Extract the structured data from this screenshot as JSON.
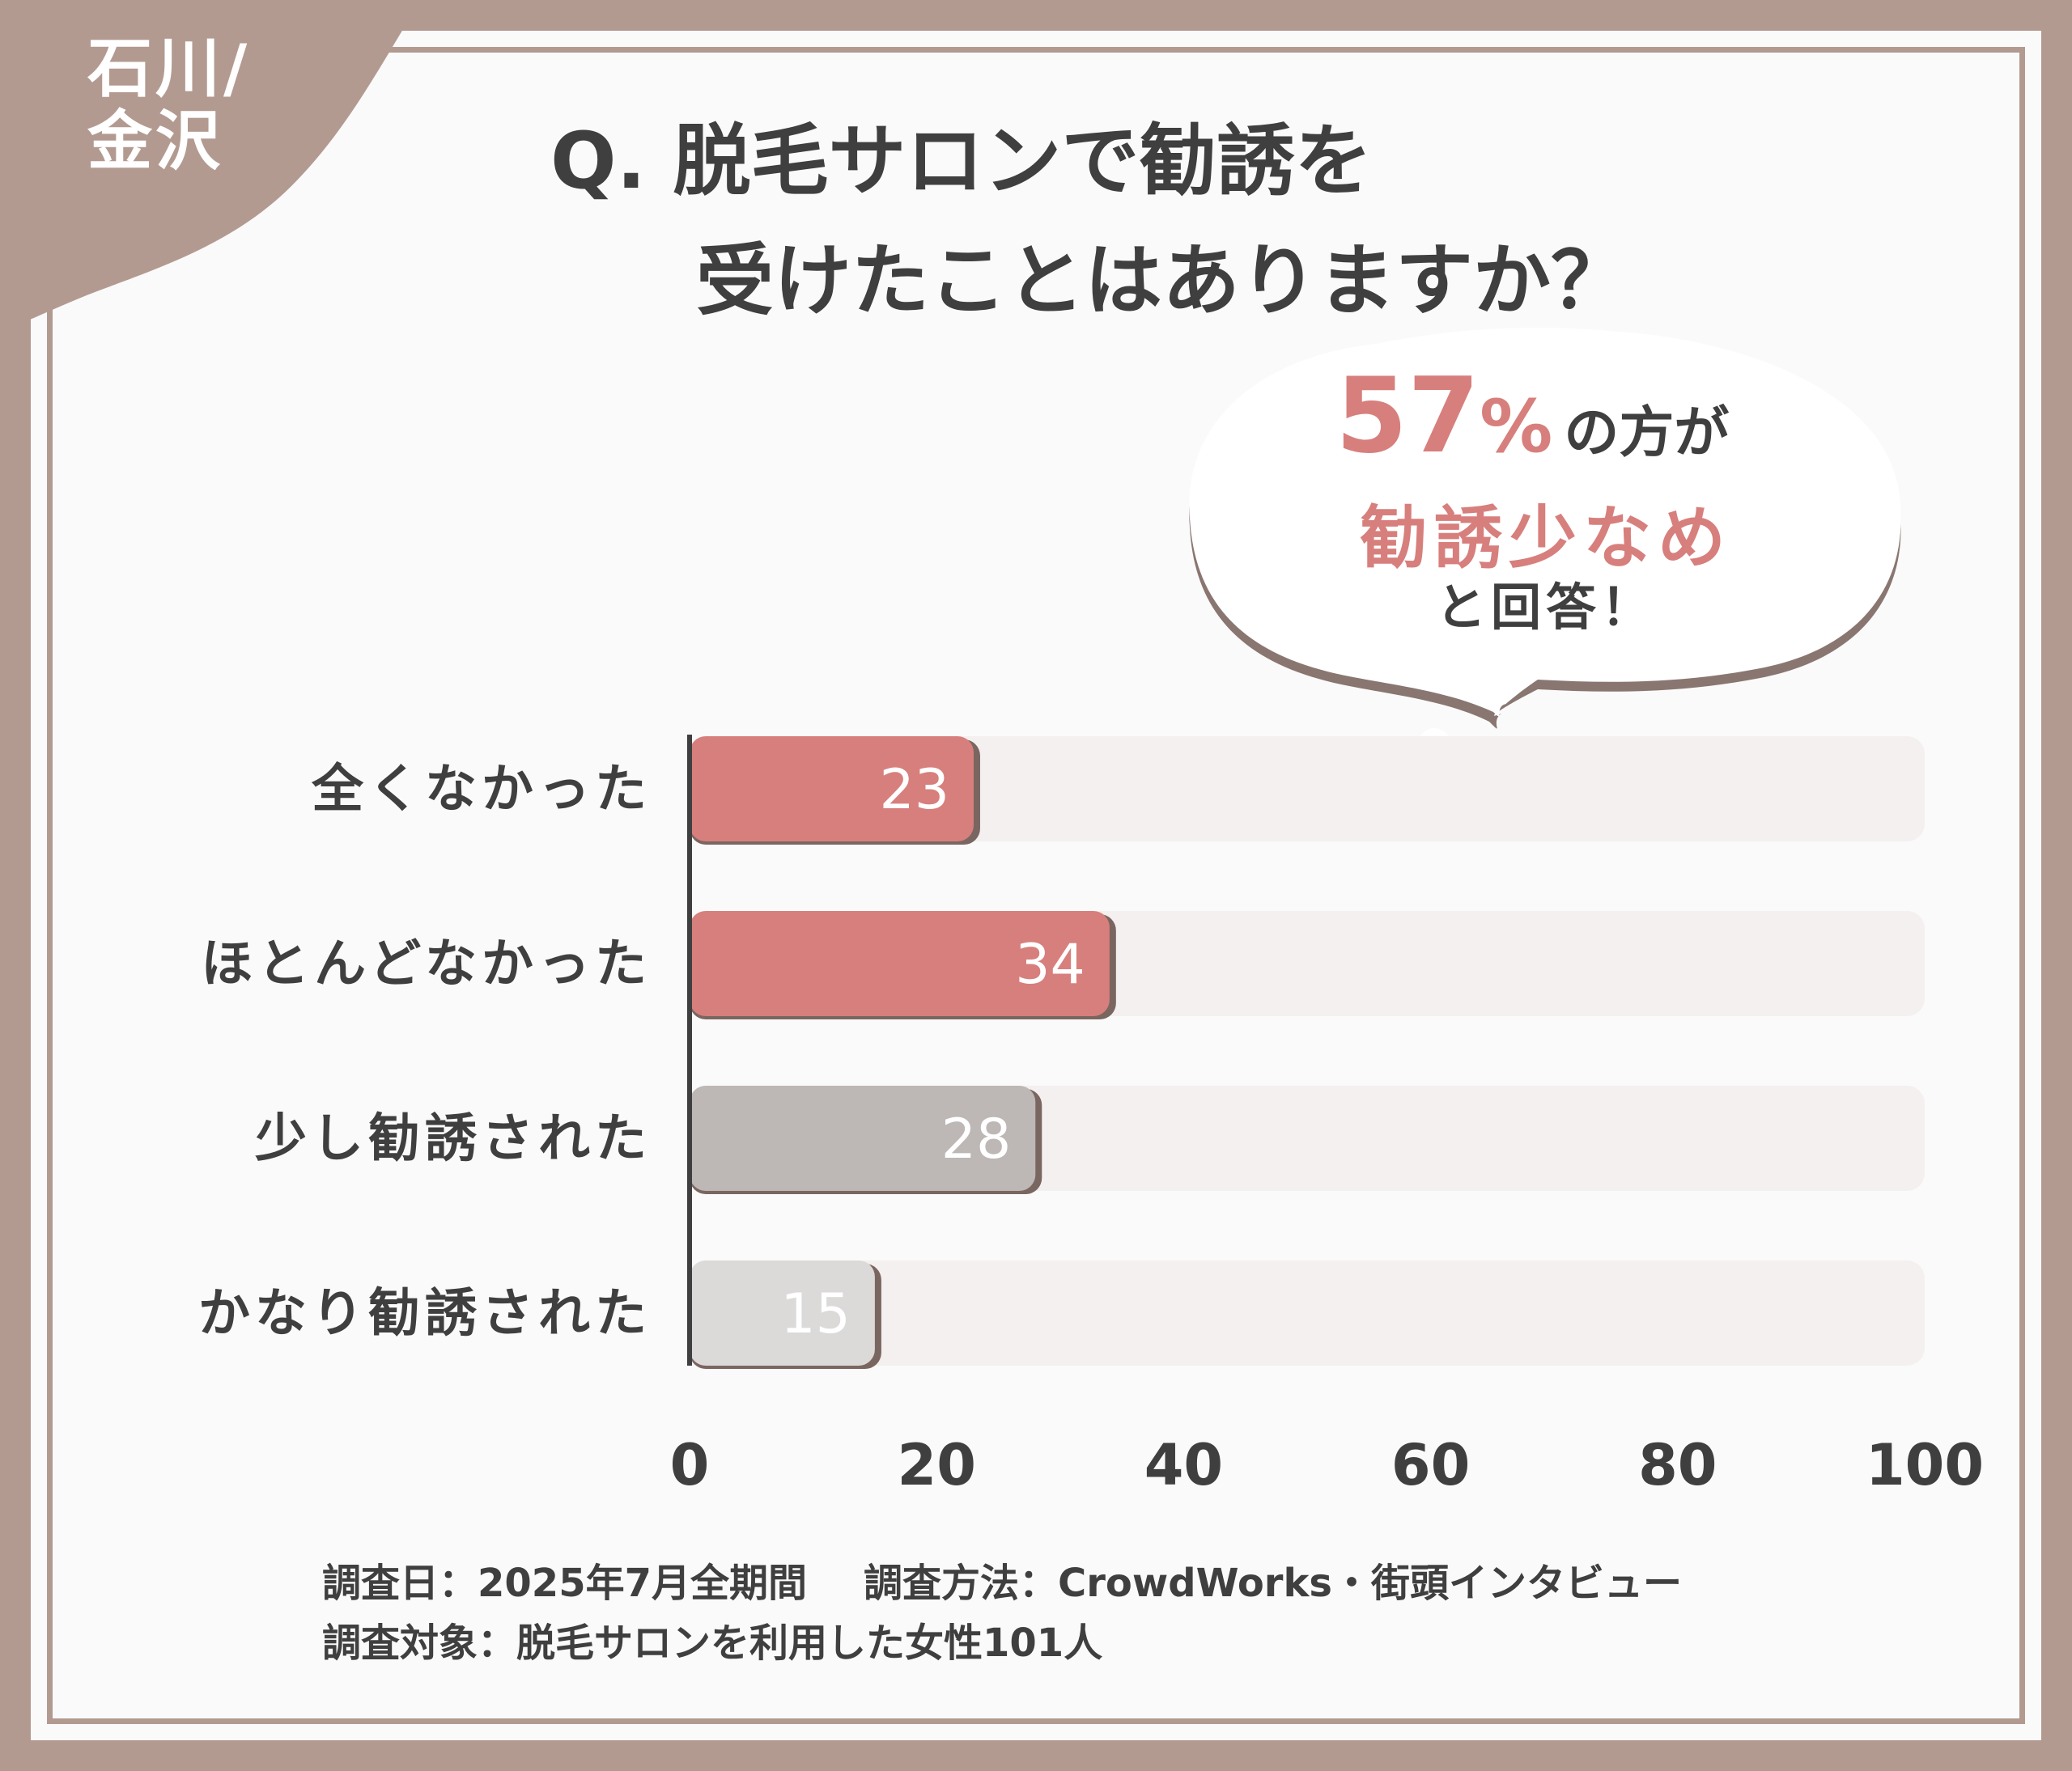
{
  "region": {
    "line1": "石川/",
    "line2": "金沢"
  },
  "title": {
    "line1": "Q. 脱毛サロンで勧誘を",
    "line2": "受けたことはありますか？"
  },
  "callout": {
    "percent": "57",
    "percent_sign": "%",
    "suffix": "の方が",
    "highlight": "勧誘少なめ",
    "closing": "と回答！"
  },
  "colors": {
    "background": "#b39a91",
    "accent": "#d77f7c",
    "gray_bar": "#bdb7b6",
    "light_bar": "#dcd9d9",
    "track": "#f3f0ef",
    "text": "#3f3f3f"
  },
  "chart_data": {
    "type": "bar",
    "orientation": "horizontal",
    "categories": [
      "全くなかった",
      "ほとんどなかった",
      "少し勧誘された",
      "かなり勧誘された"
    ],
    "values": [
      23,
      34,
      28,
      15
    ],
    "bar_colors": [
      "#d77f7c",
      "#d77f7c",
      "#bdb7b6",
      "#dcd9d9"
    ],
    "xlim": [
      0,
      100
    ],
    "xticks": [
      "0",
      "20",
      "40",
      "60",
      "80",
      "100"
    ],
    "xlabel": "",
    "ylabel": ""
  },
  "footer": {
    "date": "調査日：2025年7月全期間",
    "method": "調査方法：CrowdWorks・街頭インタビュー",
    "target": "調査対象：脱毛サロンを利用した女性101人"
  }
}
